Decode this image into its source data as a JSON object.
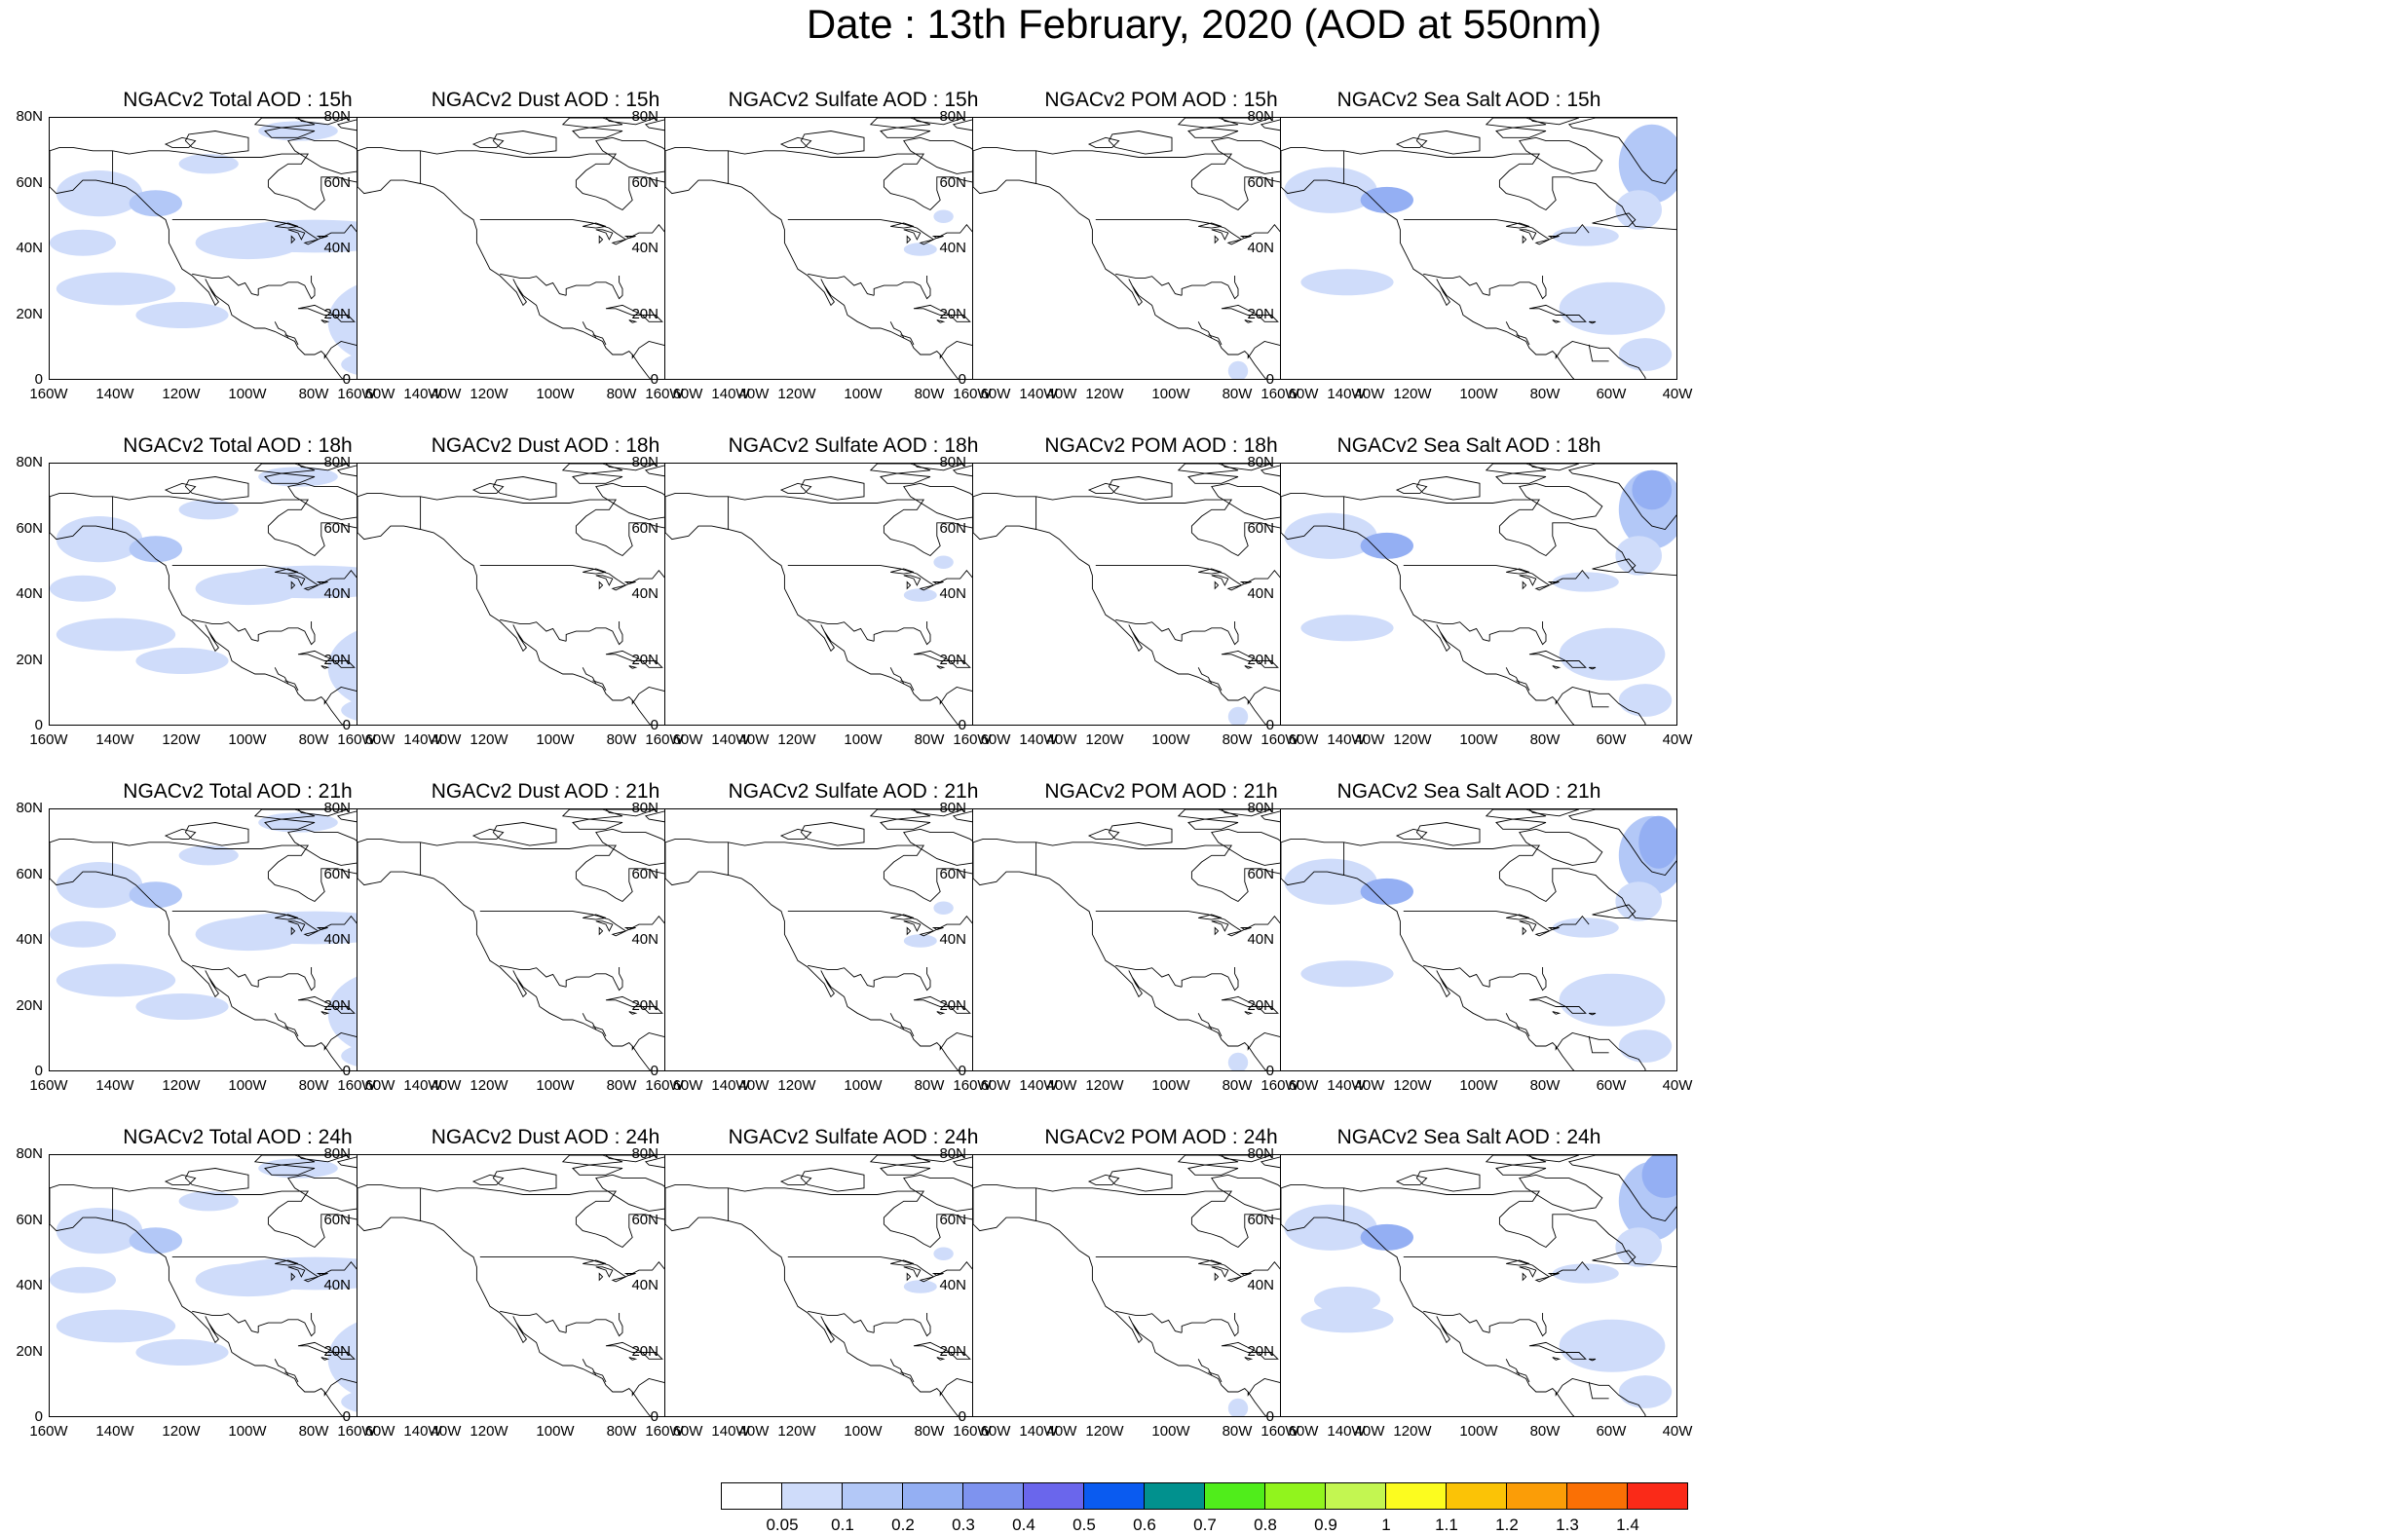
{
  "title": "Date : 13th February, 2020 (AOD at 550nm)",
  "map": {
    "projection": "cylindrical-equidistant",
    "lon_range": [
      -160,
      -40
    ],
    "lat_range": [
      0,
      80
    ],
    "y_ticks": [
      "80N",
      "60N",
      "40N",
      "20N",
      "0"
    ],
    "x_ticks": [
      "160W",
      "140W",
      "120W",
      "100W",
      "80W",
      "60W",
      "40W"
    ]
  },
  "panels": [
    {
      "title": "NGACv2 Total AOD : 15h",
      "species": "total",
      "hour": 15
    },
    {
      "title": "NGACv2 Dust AOD : 15h",
      "species": "dust",
      "hour": 15
    },
    {
      "title": "NGACv2 Sulfate AOD : 15h",
      "species": "sulfate",
      "hour": 15
    },
    {
      "title": "NGACv2 POM AOD : 15h",
      "species": "pom",
      "hour": 15
    },
    {
      "title": "NGACv2 Sea Salt AOD : 15h",
      "species": "seasalt",
      "hour": 15
    },
    {
      "title": "NGACv2 Total AOD : 18h",
      "species": "total",
      "hour": 18
    },
    {
      "title": "NGACv2 Dust AOD : 18h",
      "species": "dust",
      "hour": 18
    },
    {
      "title": "NGACv2 Sulfate AOD : 18h",
      "species": "sulfate",
      "hour": 18
    },
    {
      "title": "NGACv2 POM AOD : 18h",
      "species": "pom",
      "hour": 18
    },
    {
      "title": "NGACv2 Sea Salt AOD : 18h",
      "species": "seasalt",
      "hour": 18
    },
    {
      "title": "NGACv2 Total AOD : 21h",
      "species": "total",
      "hour": 21
    },
    {
      "title": "NGACv2 Dust AOD : 21h",
      "species": "dust",
      "hour": 21
    },
    {
      "title": "NGACv2 Sulfate AOD : 21h",
      "species": "sulfate",
      "hour": 21
    },
    {
      "title": "NGACv2 POM AOD : 21h",
      "species": "pom",
      "hour": 21
    },
    {
      "title": "NGACv2 Sea Salt AOD : 21h",
      "species": "seasalt",
      "hour": 21
    },
    {
      "title": "NGACv2 Total AOD : 24h",
      "species": "total",
      "hour": 24
    },
    {
      "title": "NGACv2 Dust AOD : 24h",
      "species": "dust",
      "hour": 24
    },
    {
      "title": "NGACv2 Sulfate AOD : 24h",
      "species": "sulfate",
      "hour": 24
    },
    {
      "title": "NGACv2 POM AOD : 24h",
      "species": "pom",
      "hour": 24
    },
    {
      "title": "NGACv2 Sea Salt  AOD : 24h",
      "species": "seasalt",
      "hour": 24
    }
  ],
  "colorbar": {
    "colors": [
      "#ffffff",
      "#cfdcfa",
      "#b3c8f7",
      "#94aff3",
      "#7e93ef",
      "#6a66ec",
      "#0a5bf0",
      "#01918e",
      "#50ed1b",
      "#91f41d",
      "#c3f651",
      "#fcfc1f",
      "#fbc306",
      "#fb9d07",
      "#fa7005",
      "#fa2a18"
    ],
    "labels": [
      "0.05",
      "0.1",
      "0.2",
      "0.3",
      "0.4",
      "0.5",
      "0.6",
      "0.7",
      "0.8",
      "0.9",
      "1",
      "1.1",
      "1.2",
      "1.3",
      "1.4"
    ]
  },
  "style": {
    "coast_color": "#000000",
    "light_aod": "#cfdcfa",
    "medium_aod": "#b3c8f7",
    "heavy_aod": "#94aff3",
    "peak_aod": "#7e93ef"
  }
}
